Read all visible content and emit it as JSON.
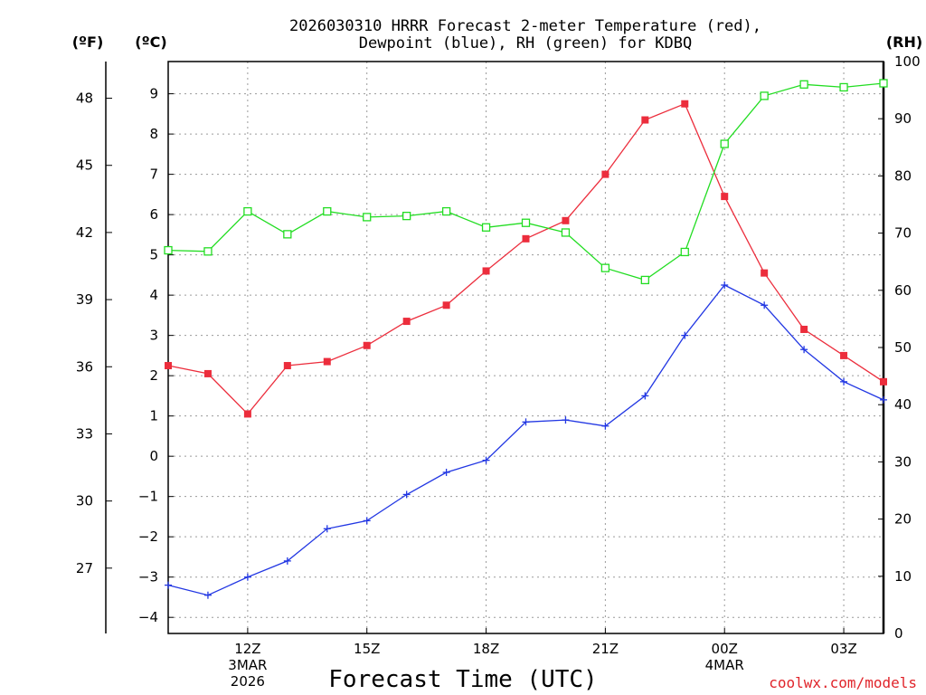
{
  "chart_data": {
    "type": "line",
    "title": "2026030310 HRRR Forecast 2-meter Temperature (red), Dewpoint (blue), RH (green) for KDBQ",
    "title_lines": [
      "2026030310 HRRR Forecast 2-meter Temperature (red),",
      "Dewpoint (blue), RH (green) for KDBQ"
    ],
    "xlabel": "Forecast Time (UTC)",
    "credit": "coolwx.com/models",
    "units": {
      "fahrenheit": "(ºF)",
      "celsius": "(ºC)",
      "rh": "(RH)"
    },
    "x": [
      10,
      11,
      12,
      13,
      14,
      15,
      16,
      17,
      18,
      19,
      20,
      21,
      22,
      23,
      24,
      25,
      26,
      27,
      28
    ],
    "xlim": [
      10,
      28
    ],
    "x_ticks": [
      {
        "x": 12,
        "lines": [
          "12Z",
          "3MAR",
          "2026"
        ]
      },
      {
        "x": 15,
        "lines": [
          "15Z"
        ]
      },
      {
        "x": 18,
        "lines": [
          "18Z"
        ]
      },
      {
        "x": 21,
        "lines": [
          "21Z"
        ]
      },
      {
        "x": 24,
        "lines": [
          "00Z",
          "4MAR"
        ]
      },
      {
        "x": 27,
        "lines": [
          "03Z"
        ]
      }
    ],
    "ylim_celsius": [
      -4.4,
      9.8
    ],
    "y_ticks_celsius": [
      "9",
      "8",
      "7",
      "6",
      "5",
      "4",
      "3",
      "2",
      "1",
      "0",
      "−1",
      "−2",
      "−3",
      "−4"
    ],
    "y_ticks_fahrenheit": [
      "48",
      "45",
      "42",
      "39",
      "36",
      "33",
      "30",
      "27"
    ],
    "ylim_rh": [
      0,
      100
    ],
    "y_ticks_rh": [
      "100",
      "90",
      "80",
      "70",
      "60",
      "50",
      "40",
      "30",
      "20",
      "10",
      "0"
    ],
    "series": [
      {
        "name": "2-meter Temperature",
        "color": "#ec2d3c",
        "marker": "filled-square",
        "axis": "celsius",
        "values": [
          2.25,
          2.05,
          1.05,
          2.25,
          2.35,
          2.75,
          3.35,
          3.75,
          4.6,
          5.4,
          5.85,
          7.0,
          8.35,
          8.75,
          6.45,
          4.55,
          3.15,
          2.5,
          1.85
        ]
      },
      {
        "name": "Dewpoint",
        "color": "#2237e3",
        "marker": "plus",
        "axis": "celsius",
        "values": [
          -3.2,
          -3.45,
          -3.0,
          -2.6,
          -1.8,
          -1.6,
          -0.95,
          -0.4,
          -0.1,
          0.85,
          0.9,
          0.75,
          1.5,
          3.0,
          4.25,
          3.75,
          2.65,
          1.85,
          1.4
        ]
      },
      {
        "name": "RH",
        "color": "#22dd22",
        "marker": "open-square",
        "axis": "rh",
        "values": [
          67,
          66.8,
          73.8,
          69.8,
          73.8,
          72.8,
          73,
          73.8,
          71,
          71.8,
          70.1,
          63.9,
          61.8,
          66.7,
          85.6,
          94,
          96,
          95.5,
          96.2
        ]
      }
    ]
  }
}
